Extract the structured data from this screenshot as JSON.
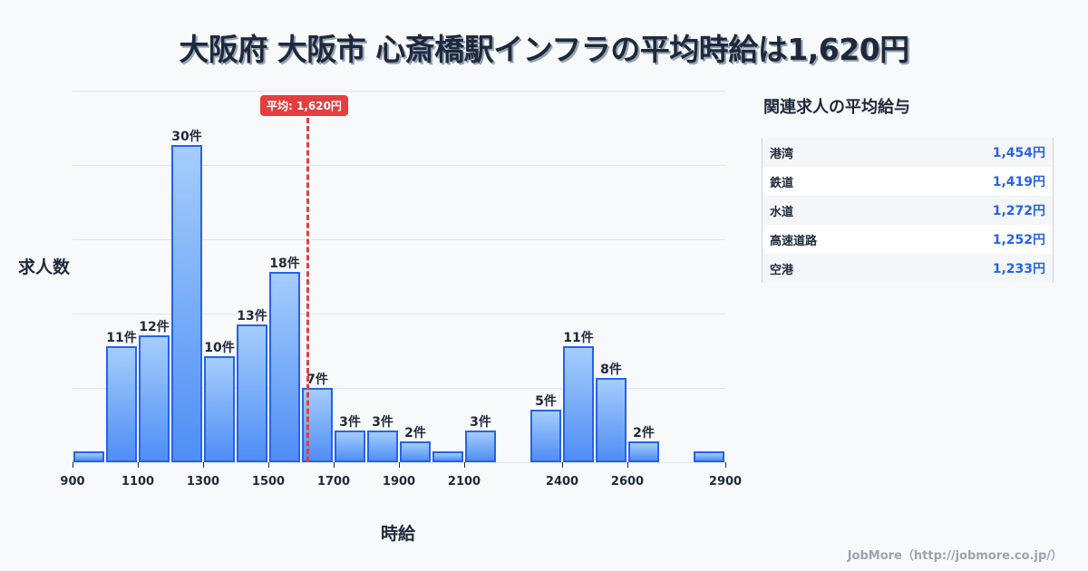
{
  "title": "大阪府 大阪市 心斎橋駅インフラの平均時給は1,620円",
  "chart_data": {
    "type": "bar",
    "title": "大阪府 大阪市 心斎橋駅インフラの平均時給は1,620円",
    "xlabel": "時給",
    "ylabel": "求人数",
    "bin_width": 100,
    "categories": [
      900,
      1000,
      1100,
      1200,
      1300,
      1400,
      1500,
      1600,
      1700,
      1800,
      1900,
      2000,
      2100,
      2200,
      2300,
      2400,
      2500,
      2600,
      2700,
      2800
    ],
    "values": [
      1,
      11,
      12,
      30,
      10,
      13,
      18,
      7,
      3,
      3,
      2,
      1,
      3,
      0,
      5,
      11,
      8,
      2,
      0,
      1
    ],
    "value_labels": [
      "",
      "11件",
      "12件",
      "30件",
      "10件",
      "13件",
      "18件",
      "7件",
      "3件",
      "3件",
      "2件",
      "",
      "3件",
      "",
      "5件",
      "11件",
      "8件",
      "2件",
      "",
      ""
    ],
    "x_ticks": [
      900,
      1100,
      1300,
      1500,
      1700,
      1900,
      2100,
      2400,
      2600,
      2900
    ],
    "xlim": [
      900,
      2900
    ],
    "ylim": [
      0,
      35
    ],
    "grid": true,
    "average": {
      "value": 1620,
      "label": "平均: 1,620円",
      "color": "#e53e3e"
    },
    "bar_color": "#4f8ef5",
    "bar_border_color": "#2563eb"
  },
  "sidebar": {
    "title": "関連求人の平均給与",
    "items": [
      {
        "name": "港湾",
        "value": "1,454円"
      },
      {
        "name": "鉄道",
        "value": "1,419円"
      },
      {
        "name": "水道",
        "value": "1,272円"
      },
      {
        "name": "高速道路",
        "value": "1,252円"
      },
      {
        "name": "空港",
        "value": "1,233円"
      }
    ]
  },
  "credit": "JobMore（http://jobmore.co.jp/）"
}
